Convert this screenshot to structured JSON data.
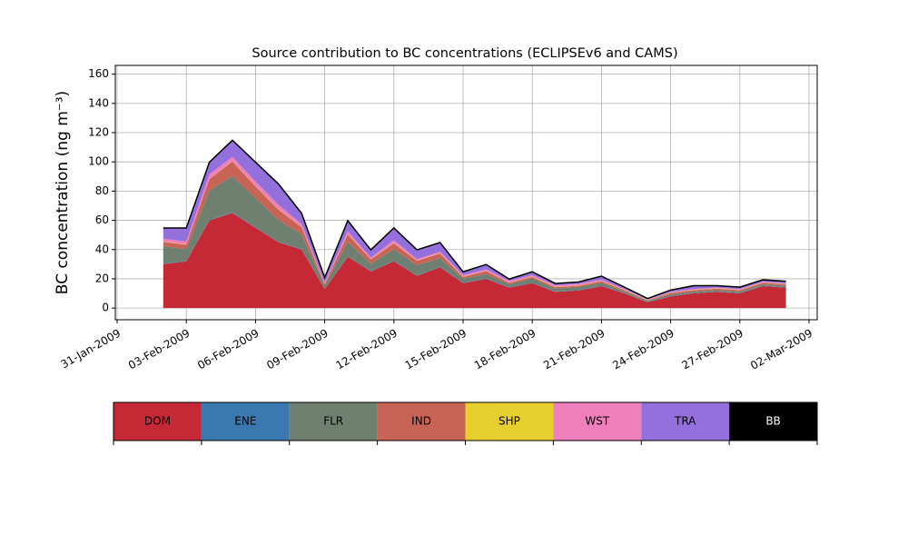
{
  "chart_data": {
    "type": "stacked_area",
    "title": "Source contribution to BC concentrations (ECLIPSEv6 and CAMS)",
    "y_label": "BC concentration (ng m⁻³)",
    "x": [
      "2009-02-02",
      "2009-02-03",
      "2009-02-04",
      "2009-02-05",
      "2009-02-06",
      "2009-02-07",
      "2009-02-08",
      "2009-02-09",
      "2009-02-10",
      "2009-02-11",
      "2009-02-12",
      "2009-02-13",
      "2009-02-14",
      "2009-02-15",
      "2009-02-16",
      "2009-02-17",
      "2009-02-18",
      "2009-02-19",
      "2009-02-20",
      "2009-02-21",
      "2009-02-22",
      "2009-02-23",
      "2009-02-24",
      "2009-02-25",
      "2009-02-26",
      "2009-02-27",
      "2009-02-28",
      "2009-03-01"
    ],
    "series": [
      {
        "name": "DOM",
        "color": "#c42935",
        "values": [
          30,
          32,
          60,
          65,
          55,
          45,
          40,
          13,
          35,
          25,
          32,
          22,
          28,
          17,
          20,
          14,
          17,
          11,
          12,
          15,
          10,
          4,
          8,
          10,
          11,
          10,
          15,
          14
        ]
      },
      {
        "name": "ENE",
        "color": "#3a78b0",
        "values": [
          0.3,
          0.3,
          0.3,
          0.3,
          0.3,
          0.3,
          0.3,
          0.3,
          0.3,
          0.3,
          0.3,
          0.3,
          0.3,
          0.3,
          0.3,
          0.3,
          0.3,
          0.3,
          0.3,
          0.3,
          0.3,
          0.3,
          0.3,
          0.3,
          0.3,
          0.3,
          0.3,
          0.3
        ]
      },
      {
        "name": "FLR",
        "color": "#6f8070",
        "values": [
          12,
          8,
          20,
          25,
          20,
          15,
          10,
          2,
          10,
          5,
          8,
          7,
          6,
          3,
          3,
          2,
          3,
          2,
          2,
          2,
          1,
          0.5,
          1,
          1,
          1,
          1,
          1,
          1
        ]
      },
      {
        "name": "IND",
        "color": "#c86455",
        "values": [
          3,
          3,
          8,
          10,
          8,
          7,
          5,
          1,
          5,
          3,
          4,
          3,
          3,
          1,
          2,
          1,
          1,
          1,
          1,
          1,
          1,
          0.5,
          1,
          1,
          1,
          1,
          1,
          1
        ]
      },
      {
        "name": "SHP",
        "color": "#e7cf30",
        "values": [
          0.2,
          0.2,
          0.2,
          0.2,
          0.2,
          0.2,
          0.2,
          0.2,
          0.2,
          0.2,
          0.2,
          0.2,
          0.2,
          0.2,
          0.2,
          0.2,
          0.2,
          0.2,
          0.2,
          0.2,
          0.2,
          0.2,
          0.2,
          0.2,
          0.2,
          0.2,
          0.2,
          0.2
        ]
      },
      {
        "name": "WST",
        "color": "#f07fbd",
        "values": [
          2,
          2,
          3,
          3,
          3,
          3,
          2,
          1,
          2,
          1,
          2,
          1,
          1,
          1,
          1,
          1,
          1,
          1,
          1,
          1,
          0.5,
          0.3,
          0.5,
          0.5,
          0.5,
          0.5,
          0.5,
          0.5
        ]
      },
      {
        "name": "TRA",
        "color": "#9370db",
        "values": [
          7,
          9,
          8,
          11,
          13,
          14,
          7,
          3,
          7,
          5,
          8,
          6,
          6,
          2,
          3,
          1,
          2,
          1,
          1,
          2,
          1,
          0.4,
          1,
          2,
          1,
          1,
          1,
          1
        ]
      },
      {
        "name": "BB",
        "color": "#000000",
        "values": [
          0.3,
          0.3,
          0.3,
          0.3,
          0.3,
          0.3,
          0.3,
          0.3,
          0.3,
          0.3,
          0.3,
          0.3,
          0.3,
          0.3,
          0.3,
          0.3,
          0.3,
          0.3,
          0.3,
          0.3,
          0.3,
          0.3,
          0.3,
          0.3,
          0.3,
          0.3,
          0.3,
          0.3
        ]
      }
    ],
    "xlim": [
      "2009-01-31",
      "2009-03-02"
    ],
    "xticks": [
      {
        "value": "2009-01-31",
        "label": "31-Jan-2009"
      },
      {
        "value": "2009-02-03",
        "label": "03-Feb-2009"
      },
      {
        "value": "2009-02-06",
        "label": "06-Feb-2009"
      },
      {
        "value": "2009-02-09",
        "label": "09-Feb-2009"
      },
      {
        "value": "2009-02-12",
        "label": "12-Feb-2009"
      },
      {
        "value": "2009-02-15",
        "label": "15-Feb-2009"
      },
      {
        "value": "2009-02-18",
        "label": "18-Feb-2009"
      },
      {
        "value": "2009-02-21",
        "label": "21-Feb-2009"
      },
      {
        "value": "2009-02-24",
        "label": "24-Feb-2009"
      },
      {
        "value": "2009-02-27",
        "label": "27-Feb-2009"
      },
      {
        "value": "2009-03-02",
        "label": "02-Mar-2009"
      }
    ],
    "ylim": [
      -8,
      166
    ],
    "yticks": [
      0,
      20,
      40,
      60,
      80,
      100,
      120,
      140,
      160
    ],
    "grid": true
  }
}
